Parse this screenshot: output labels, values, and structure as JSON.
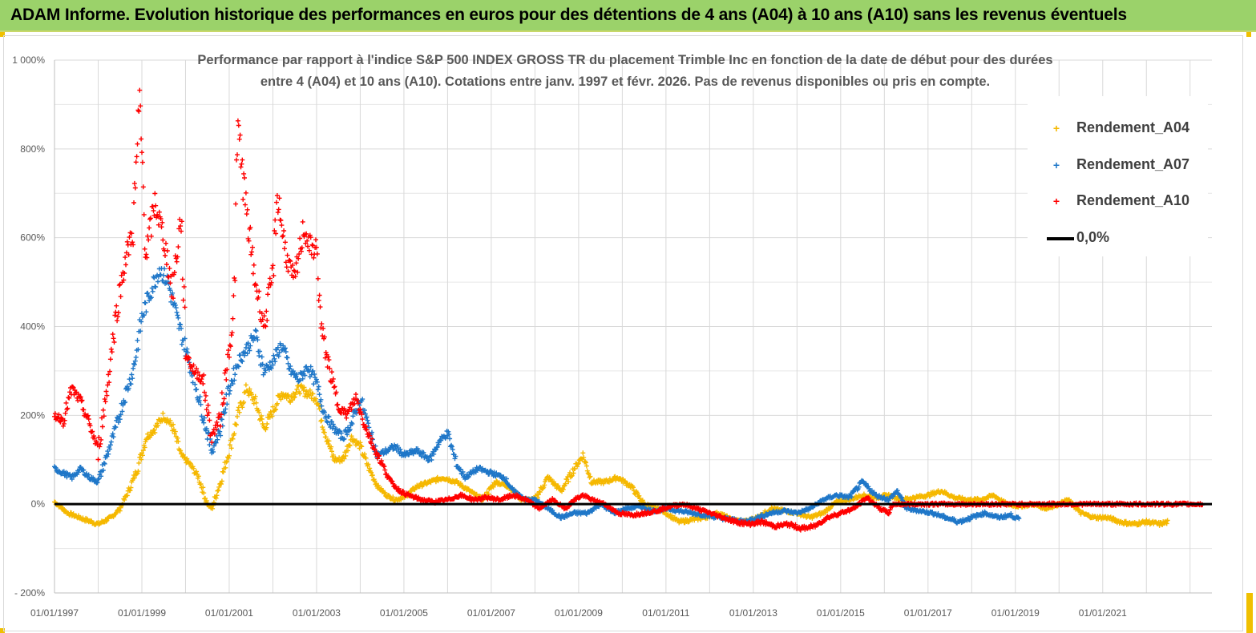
{
  "header": {
    "title": "ADAM Informe. Evolution historique des performances en euros pour des détentions de 4 ans (A04) à 10 ans (A10) sans les revenus éventuels"
  },
  "colors": {
    "header_bg": "#9bd26a",
    "A04": "#f5b800",
    "A07": "#1f77c8",
    "A10": "#ff0000",
    "zero": "#000000"
  },
  "chart_data": {
    "type": "scatter",
    "title_line1": "Performance par rapport à l'indice S&P 500 INDEX GROSS TR  du placement Trimble Inc en fonction de la date de début pour des durées",
    "title_line2": "entre 4 (A04) et 10 ans (A10). Cotations entre janv. 1997 et févr. 2026. Pas de revenus disponibles ou pris en compte.",
    "xlabel": "",
    "ylabel": "",
    "x_range": [
      "1997-01-01",
      "2023-06-30"
    ],
    "ylim": [
      -200,
      1000
    ],
    "y_ticks": [
      -200,
      0,
      200,
      400,
      600,
      800,
      1000
    ],
    "y_tick_labels": [
      "- 200%",
      "0%",
      "200%",
      "400%",
      "600%",
      "800%",
      "1 000%"
    ],
    "x_tick_labels": [
      "01/01/1997",
      "01/01/1999",
      "01/01/2001",
      "01/01/2003",
      "01/01/2005",
      "01/01/2007",
      "01/01/2009",
      "01/01/2011",
      "01/01/2013",
      "01/01/2015",
      "01/01/2017",
      "01/01/2019",
      "01/01/2021"
    ],
    "x_tick_years": [
      1997,
      1999,
      2001,
      2003,
      2005,
      2007,
      2009,
      2011,
      2013,
      2015,
      2017,
      2019,
      2021
    ],
    "grid": true,
    "legend_position": "top-right",
    "series": [
      {
        "name": "Rendement_A04",
        "marker": "+",
        "color": "#f5b800",
        "points": [
          [
            1997.0,
            5
          ],
          [
            1997.3,
            -20
          ],
          [
            1997.7,
            -35
          ],
          [
            1998.0,
            -45
          ],
          [
            1998.3,
            -30
          ],
          [
            1998.5,
            -10
          ],
          [
            1998.7,
            30
          ],
          [
            1998.9,
            80
          ],
          [
            1999.1,
            150
          ],
          [
            1999.3,
            170
          ],
          [
            1999.5,
            200
          ],
          [
            1999.7,
            175
          ],
          [
            1999.9,
            110
          ],
          [
            2000.1,
            90
          ],
          [
            2000.3,
            60
          ],
          [
            2000.5,
            0
          ],
          [
            2000.6,
            -10
          ],
          [
            2000.8,
            50
          ],
          [
            2001.0,
            120
          ],
          [
            2001.2,
            200
          ],
          [
            2001.4,
            260
          ],
          [
            2001.6,
            230
          ],
          [
            2001.8,
            170
          ],
          [
            2002.0,
            210
          ],
          [
            2002.2,
            250
          ],
          [
            2002.4,
            240
          ],
          [
            2002.6,
            260
          ],
          [
            2002.8,
            250
          ],
          [
            2003.0,
            240
          ],
          [
            2003.2,
            160
          ],
          [
            2003.4,
            100
          ],
          [
            2003.6,
            100
          ],
          [
            2003.8,
            150
          ],
          [
            2004.0,
            130
          ],
          [
            2004.2,
            80
          ],
          [
            2004.4,
            40
          ],
          [
            2004.6,
            20
          ],
          [
            2004.8,
            10
          ],
          [
            2005.0,
            15
          ],
          [
            2005.3,
            40
          ],
          [
            2005.6,
            50
          ],
          [
            2005.9,
            60
          ],
          [
            2006.2,
            50
          ],
          [
            2006.5,
            30
          ],
          [
            2006.8,
            10
          ],
          [
            2007.1,
            50
          ],
          [
            2007.4,
            40
          ],
          [
            2007.7,
            10
          ],
          [
            2008.0,
            10
          ],
          [
            2008.3,
            60
          ],
          [
            2008.6,
            30
          ],
          [
            2008.9,
            80
          ],
          [
            2009.1,
            110
          ],
          [
            2009.3,
            50
          ],
          [
            2009.6,
            50
          ],
          [
            2009.9,
            60
          ],
          [
            2010.2,
            40
          ],
          [
            2010.5,
            0
          ],
          [
            2010.8,
            -10
          ],
          [
            2011.0,
            -20
          ],
          [
            2011.3,
            -40
          ],
          [
            2011.6,
            -35
          ],
          [
            2011.9,
            -30
          ],
          [
            2012.2,
            -20
          ],
          [
            2012.5,
            -35
          ],
          [
            2012.8,
            -40
          ],
          [
            2013.1,
            -30
          ],
          [
            2013.4,
            -10
          ],
          [
            2013.7,
            -15
          ],
          [
            2014.0,
            -20
          ],
          [
            2014.3,
            -30
          ],
          [
            2014.6,
            -20
          ],
          [
            2014.9,
            5
          ],
          [
            2015.2,
            10
          ],
          [
            2015.5,
            20
          ],
          [
            2015.8,
            15
          ],
          [
            2016.1,
            20
          ],
          [
            2016.4,
            10
          ],
          [
            2016.7,
            15
          ],
          [
            2017.0,
            20
          ],
          [
            2017.3,
            30
          ],
          [
            2017.6,
            15
          ],
          [
            2017.9,
            10
          ],
          [
            2018.2,
            10
          ],
          [
            2018.5,
            20
          ],
          [
            2018.8,
            0
          ],
          [
            2019.1,
            -5
          ],
          [
            2019.4,
            0
          ],
          [
            2019.7,
            -10
          ],
          [
            2020.0,
            0
          ],
          [
            2020.2,
            10
          ],
          [
            2020.5,
            -20
          ],
          [
            2020.8,
            -30
          ],
          [
            2021.1,
            -30
          ],
          [
            2021.4,
            -40
          ],
          [
            2021.7,
            -45
          ],
          [
            2022.0,
            -40
          ],
          [
            2022.3,
            -45
          ],
          [
            2022.5,
            -40
          ]
        ]
      },
      {
        "name": "Rendement_A07",
        "marker": "+",
        "color": "#1f77c8",
        "points": [
          [
            1997.0,
            80
          ],
          [
            1997.2,
            70
          ],
          [
            1997.4,
            60
          ],
          [
            1997.6,
            80
          ],
          [
            1997.8,
            60
          ],
          [
            1998.0,
            50
          ],
          [
            1998.2,
            110
          ],
          [
            1998.4,
            170
          ],
          [
            1998.6,
            240
          ],
          [
            1998.8,
            300
          ],
          [
            1999.0,
            420
          ],
          [
            1999.2,
            480
          ],
          [
            1999.4,
            530
          ],
          [
            1999.6,
            500
          ],
          [
            1999.8,
            420
          ],
          [
            2000.0,
            350
          ],
          [
            2000.2,
            280
          ],
          [
            2000.4,
            200
          ],
          [
            2000.6,
            120
          ],
          [
            2000.8,
            170
          ],
          [
            2001.0,
            260
          ],
          [
            2001.2,
            320
          ],
          [
            2001.4,
            350
          ],
          [
            2001.6,
            380
          ],
          [
            2001.8,
            300
          ],
          [
            2002.0,
            320
          ],
          [
            2002.2,
            360
          ],
          [
            2002.4,
            300
          ],
          [
            2002.6,
            280
          ],
          [
            2002.8,
            310
          ],
          [
            2003.0,
            270
          ],
          [
            2003.2,
            200
          ],
          [
            2003.4,
            170
          ],
          [
            2003.6,
            150
          ],
          [
            2003.8,
            180
          ],
          [
            2004.0,
            240
          ],
          [
            2004.2,
            170
          ],
          [
            2004.4,
            110
          ],
          [
            2004.6,
            120
          ],
          [
            2004.8,
            130
          ],
          [
            2005.0,
            110
          ],
          [
            2005.3,
            120
          ],
          [
            2005.6,
            100
          ],
          [
            2005.8,
            140
          ],
          [
            2006.0,
            160
          ],
          [
            2006.2,
            90
          ],
          [
            2006.4,
            60
          ],
          [
            2006.7,
            80
          ],
          [
            2007.0,
            70
          ],
          [
            2007.3,
            60
          ],
          [
            2007.5,
            30
          ],
          [
            2007.8,
            10
          ],
          [
            2008.0,
            10
          ],
          [
            2008.3,
            -10
          ],
          [
            2008.6,
            -30
          ],
          [
            2008.9,
            -20
          ],
          [
            2009.2,
            -20
          ],
          [
            2009.5,
            0
          ],
          [
            2009.8,
            -20
          ],
          [
            2010.1,
            -10
          ],
          [
            2010.4,
            -5
          ],
          [
            2010.7,
            -15
          ],
          [
            2011.0,
            -10
          ],
          [
            2011.3,
            -15
          ],
          [
            2011.6,
            -20
          ],
          [
            2011.9,
            -25
          ],
          [
            2012.2,
            -30
          ],
          [
            2012.5,
            -35
          ],
          [
            2012.8,
            -40
          ],
          [
            2013.1,
            -30
          ],
          [
            2013.4,
            -20
          ],
          [
            2013.7,
            -15
          ],
          [
            2014.0,
            -20
          ],
          [
            2014.3,
            -10
          ],
          [
            2014.6,
            10
          ],
          [
            2014.9,
            20
          ],
          [
            2015.2,
            15
          ],
          [
            2015.5,
            50
          ],
          [
            2015.8,
            20
          ],
          [
            2016.1,
            10
          ],
          [
            2016.3,
            30
          ],
          [
            2016.5,
            -10
          ],
          [
            2016.8,
            -15
          ],
          [
            2017.1,
            -20
          ],
          [
            2017.4,
            -30
          ],
          [
            2017.7,
            -40
          ],
          [
            2018.0,
            -30
          ],
          [
            2018.3,
            -20
          ],
          [
            2018.6,
            -30
          ],
          [
            2018.9,
            -25
          ],
          [
            2019.1,
            -35
          ]
        ]
      },
      {
        "name": "Rendement_A10",
        "marker": "+",
        "color": "#ff0000",
        "points": [
          [
            1997.0,
            200
          ],
          [
            1997.2,
            190
          ],
          [
            1997.4,
            260
          ],
          [
            1997.6,
            230
          ],
          [
            1997.8,
            180
          ],
          [
            1998.0,
            120
          ],
          [
            1998.2,
            260
          ],
          [
            1998.4,
            420
          ],
          [
            1998.6,
            540
          ],
          [
            1998.8,
            620
          ],
          [
            1998.95,
            900
          ],
          [
            1999.1,
            560
          ],
          [
            1999.3,
            680
          ],
          [
            1999.5,
            600
          ],
          [
            1999.7,
            480
          ],
          [
            1999.9,
            650
          ],
          [
            2000.0,
            340
          ],
          [
            2000.2,
            300
          ],
          [
            2000.4,
            280
          ],
          [
            2000.6,
            150
          ],
          [
            2000.8,
            200
          ],
          [
            2001.0,
            350
          ],
          [
            2001.1,
            420
          ],
          [
            2001.2,
            850
          ],
          [
            2001.4,
            650
          ],
          [
            2001.6,
            500
          ],
          [
            2001.8,
            400
          ],
          [
            2002.0,
            520
          ],
          [
            2002.1,
            700
          ],
          [
            2002.3,
            560
          ],
          [
            2002.5,
            500
          ],
          [
            2002.7,
            620
          ],
          [
            2002.9,
            570
          ],
          [
            2003.0,
            580
          ],
          [
            2003.1,
            400
          ],
          [
            2003.3,
            300
          ],
          [
            2003.5,
            220
          ],
          [
            2003.7,
            200
          ],
          [
            2003.9,
            240
          ],
          [
            2004.1,
            180
          ],
          [
            2004.3,
            130
          ],
          [
            2004.5,
            90
          ],
          [
            2004.7,
            50
          ],
          [
            2004.9,
            30
          ],
          [
            2005.1,
            20
          ],
          [
            2005.4,
            10
          ],
          [
            2005.7,
            5
          ],
          [
            2006.0,
            10
          ],
          [
            2006.3,
            20
          ],
          [
            2006.6,
            10
          ],
          [
            2006.9,
            15
          ],
          [
            2007.2,
            10
          ],
          [
            2007.5,
            20
          ],
          [
            2007.8,
            10
          ],
          [
            2008.1,
            -10
          ],
          [
            2008.4,
            10
          ],
          [
            2008.7,
            -10
          ],
          [
            2008.9,
            10
          ],
          [
            2009.1,
            20
          ],
          [
            2009.3,
            10
          ],
          [
            2009.6,
            0
          ],
          [
            2009.9,
            -20
          ],
          [
            2010.2,
            -25
          ],
          [
            2010.5,
            -20
          ],
          [
            2010.8,
            -15
          ],
          [
            2011.1,
            -5
          ],
          [
            2011.4,
            0
          ],
          [
            2011.7,
            -10
          ],
          [
            2012.0,
            -20
          ],
          [
            2012.3,
            -30
          ],
          [
            2012.6,
            -40
          ],
          [
            2012.9,
            -45
          ],
          [
            2013.2,
            -40
          ],
          [
            2013.5,
            -50
          ],
          [
            2013.8,
            -45
          ],
          [
            2014.1,
            -55
          ],
          [
            2014.4,
            -50
          ],
          [
            2014.7,
            -30
          ],
          [
            2015.0,
            -20
          ],
          [
            2015.3,
            -10
          ],
          [
            2015.6,
            15
          ],
          [
            2015.9,
            -10
          ],
          [
            2016.1,
            -20
          ],
          [
            2016.2,
            0
          ],
          [
            2016.5,
            0
          ],
          [
            2017.0,
            0
          ],
          [
            2017.5,
            0
          ],
          [
            2018.0,
            0
          ],
          [
            2018.5,
            0
          ],
          [
            2019.0,
            0
          ],
          [
            2019.5,
            0
          ],
          [
            2020.0,
            0
          ],
          [
            2020.5,
            0
          ],
          [
            2021.0,
            0
          ],
          [
            2021.5,
            0
          ],
          [
            2022.0,
            0
          ],
          [
            2022.5,
            0
          ],
          [
            2023.0,
            0
          ],
          [
            2023.3,
            0
          ]
        ]
      }
    ],
    "reference_line": {
      "name": "0,0%",
      "y": 0,
      "color": "#000000"
    },
    "legend_items": [
      {
        "label": "Rendement_A04",
        "color": "#f5b800",
        "marker": "+"
      },
      {
        "label": "Rendement_A07",
        "color": "#1f77c8",
        "marker": "+"
      },
      {
        "label": "Rendement_A10",
        "color": "#ff0000",
        "marker": "+"
      },
      {
        "label": "0,0%",
        "color": "#000000",
        "marker": "line"
      }
    ]
  }
}
